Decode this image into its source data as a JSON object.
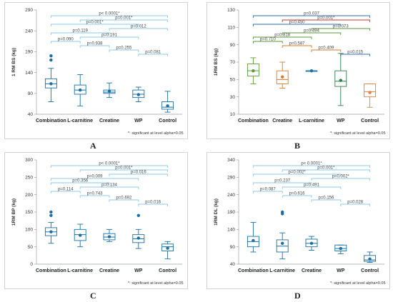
{
  "panels": [
    {
      "letter": "A",
      "note": "*: significant at level alpha=0.05"
    },
    {
      "letter": "B",
      "note": "*: significant at level alpha=0.05"
    },
    {
      "letter": "C",
      "note": "*: significant at level alpha=0.05"
    },
    {
      "letter": "D",
      "note": "*: significant at level alpha=0.05"
    }
  ],
  "chart_data": [
    {
      "type": "box",
      "ylabel": "1 RM BS (kg)",
      "ylim": [
        40,
        290
      ],
      "yticks": [
        40,
        90,
        140,
        190,
        240,
        290
      ],
      "categories": [
        "Combination",
        "L-carnitine",
        "Creatine",
        "WP",
        "Control"
      ],
      "boxes": [
        {
          "min": 70,
          "q1": 103,
          "median": 113,
          "q3": 125,
          "max": 150,
          "mean": 113,
          "outliers": [
            170,
            180
          ],
          "color": "#1a6fa3"
        },
        {
          "min": 60,
          "q1": 88,
          "median": 98,
          "q3": 110,
          "max": 135,
          "mean": 98,
          "outliers": [],
          "color": "#1a6fa3"
        },
        {
          "min": 80,
          "q1": 90,
          "median": 93,
          "q3": 98,
          "max": 115,
          "mean": 95,
          "outliers": [],
          "color": "#1a6fa3"
        },
        {
          "min": 70,
          "q1": 80,
          "median": 88,
          "q3": 98,
          "max": 105,
          "mean": 87,
          "outliers": [],
          "color": "#1a6fa3"
        },
        {
          "min": 45,
          "q1": 52,
          "median": 57,
          "q3": 70,
          "max": 95,
          "mean": 60,
          "outliers": [],
          "color": "#1a6fa3"
        }
      ],
      "comparisons": [
        {
          "from": 0,
          "to": 4,
          "label": "p< 0.0001*",
          "color": "#8ecae6"
        },
        {
          "from": 1,
          "to": 4,
          "label": "p=0.001*",
          "color": "#8ecae6"
        },
        {
          "from": 0,
          "to": 3,
          "label": "p=0.001*",
          "color": "#8ecae6"
        },
        {
          "from": 2,
          "to": 4,
          "label": "p=0.012",
          "color": "#8ecae6"
        },
        {
          "from": 0,
          "to": 2,
          "label": "p=0.119",
          "color": "#8ecae6"
        },
        {
          "from": 1,
          "to": 3,
          "label": "p=0.191",
          "color": "#8ecae6"
        },
        {
          "from": 0,
          "to": 1,
          "label": "p=0.090",
          "color": "#8ecae6"
        },
        {
          "from": 1,
          "to": 2,
          "label": "p=0.938",
          "color": "#8ecae6"
        },
        {
          "from": 2,
          "to": 3,
          "label": "p=0.255",
          "color": "#8ecae6"
        },
        {
          "from": 3,
          "to": 4,
          "label": "p=0.081",
          "color": "#8ecae6"
        }
      ]
    },
    {
      "type": "box",
      "ylabel": "1RM BS (kg)",
      "ylim": [
        10,
        130
      ],
      "yticks": [
        10,
        30,
        50,
        70,
        90,
        110,
        130
      ],
      "categories": [
        "Combination",
        "Creatine",
        "L-carnitine",
        "WP",
        "Control"
      ],
      "boxes": [
        {
          "min": 45,
          "q1": 54,
          "median": 60,
          "q3": 68,
          "max": 75,
          "mean": 60,
          "outliers": [],
          "color": "#5a9a3a"
        },
        {
          "min": 40,
          "q1": 45,
          "median": 50,
          "q3": 60,
          "max": 70,
          "mean": 53,
          "outliers": [],
          "color": "#d87a2f"
        },
        {
          "min": 60,
          "q1": 60,
          "median": 60,
          "q3": 60,
          "max": 60,
          "mean": 60,
          "outliers": [],
          "color": "#1a6fa3"
        },
        {
          "min": 20,
          "q1": 42,
          "median": 48,
          "q3": 60,
          "max": 80,
          "mean": 49,
          "outliers": [],
          "color": "#2e7d4a"
        },
        {
          "min": 18,
          "q1": 30,
          "median": 36,
          "q3": 45,
          "max": 45,
          "mean": 35,
          "outliers": [],
          "color": "#e08040"
        }
      ],
      "comparisons": [
        {
          "from": 0,
          "to": 4,
          "label": "p=0.037",
          "color": "#2e6fb0"
        },
        {
          "from": 1,
          "to": 4,
          "label": "p=0.001*",
          "color": "#c0392b"
        },
        {
          "from": 0,
          "to": 3,
          "label": "p=0.450",
          "color": "#2e6fb0"
        },
        {
          "from": 2,
          "to": 4,
          "label": "p=0.073",
          "color": "#5a9a3a"
        },
        {
          "from": 1,
          "to": 3,
          "label": "p=0.494",
          "color": "#5a9a3a"
        },
        {
          "from": 0,
          "to": 2,
          "label": "p=0.818",
          "color": "#5a9a3a"
        },
        {
          "from": 0,
          "to": 1,
          "label": "p=0.710",
          "color": "#5a9a3a"
        },
        {
          "from": 1,
          "to": 2,
          "label": "p=0.587",
          "color": "#d87a2f"
        },
        {
          "from": 2,
          "to": 3,
          "label": "p=0.409",
          "color": "#d87a2f"
        },
        {
          "from": 3,
          "to": 4,
          "label": "p=0.015",
          "color": "#2e6fb0"
        }
      ]
    },
    {
      "type": "box",
      "ylabel": "1RM BP (kg)",
      "ylim": [
        0,
        300
      ],
      "yticks": [
        0,
        50,
        100,
        150,
        200,
        250,
        300
      ],
      "categories": [
        "Combination",
        "L-carnitine",
        "Creatine",
        "WP",
        "Control"
      ],
      "boxes": [
        {
          "min": 60,
          "q1": 82,
          "median": 93,
          "q3": 105,
          "max": 120,
          "mean": 93,
          "outliers": [
            140,
            150
          ],
          "color": "#1a6fa3"
        },
        {
          "min": 50,
          "q1": 68,
          "median": 85,
          "q3": 100,
          "max": 115,
          "mean": 83,
          "outliers": [],
          "color": "#1a6fa3"
        },
        {
          "min": 65,
          "q1": 70,
          "median": 78,
          "q3": 88,
          "max": 100,
          "mean": 79,
          "outliers": [],
          "color": "#1a6fa3"
        },
        {
          "min": 45,
          "q1": 62,
          "median": 73,
          "q3": 85,
          "max": 100,
          "mean": 75,
          "outliers": [
            140
          ],
          "color": "#1a6fa3"
        },
        {
          "min": 15,
          "q1": 38,
          "median": 50,
          "q3": 58,
          "max": 65,
          "mean": 46,
          "outliers": [],
          "color": "#1a6fa3"
        }
      ],
      "comparisons": [
        {
          "from": 0,
          "to": 4,
          "label": "p< 0.0001*",
          "color": "#8ecae6"
        },
        {
          "from": 1,
          "to": 4,
          "label": "p=0.001*",
          "color": "#8ecae6"
        },
        {
          "from": 2,
          "to": 4,
          "label": "p=0.016",
          "color": "#8ecae6"
        },
        {
          "from": 0,
          "to": 3,
          "label": "p=0.009",
          "color": "#8ecae6"
        },
        {
          "from": 0,
          "to": 2,
          "label": "p=0.356",
          "color": "#8ecae6"
        },
        {
          "from": 1,
          "to": 3,
          "label": "p=0.134",
          "color": "#8ecae6"
        },
        {
          "from": 0,
          "to": 1,
          "label": "p=0.114",
          "color": "#8ecae6"
        },
        {
          "from": 1,
          "to": 2,
          "label": "p=0.743",
          "color": "#8ecae6"
        },
        {
          "from": 2,
          "to": 3,
          "label": "p=0.692",
          "color": "#8ecae6"
        },
        {
          "from": 3,
          "to": 4,
          "label": "p=0.016",
          "color": "#8ecae6"
        }
      ]
    },
    {
      "type": "box",
      "ylabel": "1RM DL (kg)",
      "ylim": [
        40,
        340
      ],
      "yticks": [
        40,
        90,
        140,
        190,
        240,
        290,
        340
      ],
      "categories": [
        "Combination",
        "L-carnitine",
        "Creatine",
        "WP",
        "Control"
      ],
      "boxes": [
        {
          "min": 75,
          "q1": 90,
          "median": 105,
          "q3": 120,
          "max": 160,
          "mean": 108,
          "outliers": [],
          "color": "#1a6fa3"
        },
        {
          "min": 55,
          "q1": 75,
          "median": 92,
          "q3": 110,
          "max": 130,
          "mean": 100,
          "outliers": [
            185,
            190
          ],
          "color": "#1a6fa3"
        },
        {
          "min": 80,
          "q1": 90,
          "median": 100,
          "q3": 112,
          "max": 120,
          "mean": 100,
          "outliers": [],
          "color": "#1a6fa3"
        },
        {
          "min": 70,
          "q1": 78,
          "median": 85,
          "q3": 95,
          "max": 95,
          "mean": 85,
          "outliers": [],
          "color": "#1a6fa3"
        },
        {
          "min": 45,
          "q1": 48,
          "median": 52,
          "q3": 65,
          "max": 75,
          "mean": 55,
          "outliers": [],
          "color": "#1a6fa3"
        }
      ],
      "comparisons": [
        {
          "from": 0,
          "to": 4,
          "label": "p< 0.0001*",
          "color": "#8ecae6"
        },
        {
          "from": 1,
          "to": 4,
          "label": "p=0.001*",
          "color": "#8ecae6"
        },
        {
          "from": 0,
          "to": 3,
          "label": "p=0.002*",
          "color": "#8ecae6"
        },
        {
          "from": 2,
          "to": 4,
          "label": "p=0.002*",
          "color": "#8ecae6"
        },
        {
          "from": 0,
          "to": 2,
          "label": "p=0.237",
          "color": "#8ecae6"
        },
        {
          "from": 1,
          "to": 3,
          "label": "p=0.491",
          "color": "#8ecae6"
        },
        {
          "from": 0,
          "to": 1,
          "label": "p=0.087",
          "color": "#8ecae6"
        },
        {
          "from": 1,
          "to": 2,
          "label": "p=0.616",
          "color": "#8ecae6"
        },
        {
          "from": 2,
          "to": 3,
          "label": "p=0.156",
          "color": "#8ecae6"
        },
        {
          "from": 3,
          "to": 4,
          "label": "p=0.028",
          "color": "#8ecae6"
        }
      ]
    }
  ]
}
